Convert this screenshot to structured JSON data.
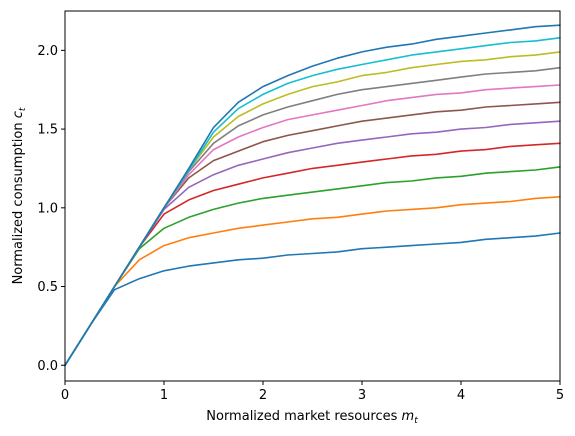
{
  "chart_data": {
    "type": "line",
    "xlabel_main": "Normalized market resources ",
    "xlabel_var": "m",
    "xlabel_sub": "t",
    "ylabel_main": "Normalized consumption ",
    "ylabel_var": "c",
    "ylabel_sub": "t",
    "xlim": [
      0,
      5
    ],
    "ylim": [
      -0.1,
      2.25
    ],
    "xticks": [
      0,
      1,
      2,
      3,
      4,
      5
    ],
    "xtick_labels": [
      "0",
      "1",
      "2",
      "3",
      "4",
      "5"
    ],
    "yticks": [
      0.0,
      0.5,
      1.0,
      1.5,
      2.0
    ],
    "ytick_labels": [
      "0.0",
      "0.5",
      "1.0",
      "1.5",
      "2.0"
    ],
    "grid": false,
    "x": [
      0,
      0.25,
      0.5,
      0.75,
      1.0,
      1.25,
      1.5,
      1.75,
      2.0,
      2.25,
      2.5,
      2.75,
      3.0,
      3.25,
      3.5,
      3.75,
      4.0,
      4.25,
      4.5,
      4.75,
      5.0
    ],
    "series": [
      {
        "color": "#1f77b4",
        "values": [
          0,
          0.25,
          0.48,
          0.55,
          0.6,
          0.63,
          0.65,
          0.67,
          0.68,
          0.7,
          0.71,
          0.72,
          0.74,
          0.75,
          0.76,
          0.77,
          0.78,
          0.8,
          0.81,
          0.82,
          0.84
        ]
      },
      {
        "color": "#ff7f0e",
        "values": [
          0,
          0.25,
          0.5,
          0.67,
          0.76,
          0.81,
          0.84,
          0.87,
          0.89,
          0.91,
          0.93,
          0.94,
          0.96,
          0.98,
          0.99,
          1.0,
          1.02,
          1.03,
          1.04,
          1.06,
          1.07
        ]
      },
      {
        "color": "#2ca02c",
        "values": [
          0,
          0.25,
          0.5,
          0.74,
          0.87,
          0.94,
          0.99,
          1.03,
          1.06,
          1.08,
          1.1,
          1.12,
          1.14,
          1.16,
          1.17,
          1.19,
          1.2,
          1.22,
          1.23,
          1.24,
          1.26
        ]
      },
      {
        "color": "#d62728",
        "values": [
          0,
          0.25,
          0.5,
          0.75,
          0.96,
          1.05,
          1.11,
          1.15,
          1.19,
          1.22,
          1.25,
          1.27,
          1.29,
          1.31,
          1.33,
          1.34,
          1.36,
          1.37,
          1.39,
          1.4,
          1.41
        ]
      },
      {
        "color": "#9467bd",
        "values": [
          0,
          0.25,
          0.5,
          0.75,
          0.99,
          1.13,
          1.21,
          1.27,
          1.31,
          1.35,
          1.38,
          1.41,
          1.43,
          1.45,
          1.47,
          1.48,
          1.5,
          1.51,
          1.53,
          1.54,
          1.55
        ]
      },
      {
        "color": "#8c564b",
        "values": [
          0,
          0.25,
          0.5,
          0.75,
          1.0,
          1.19,
          1.3,
          1.36,
          1.42,
          1.46,
          1.49,
          1.52,
          1.55,
          1.57,
          1.59,
          1.61,
          1.62,
          1.64,
          1.65,
          1.66,
          1.67
        ]
      },
      {
        "color": "#e377c2",
        "values": [
          0,
          0.25,
          0.5,
          0.75,
          1.0,
          1.21,
          1.37,
          1.45,
          1.51,
          1.56,
          1.59,
          1.62,
          1.65,
          1.68,
          1.7,
          1.72,
          1.73,
          1.75,
          1.76,
          1.77,
          1.78
        ]
      },
      {
        "color": "#7f7f7f",
        "values": [
          0,
          0.25,
          0.5,
          0.75,
          1.0,
          1.23,
          1.41,
          1.52,
          1.59,
          1.64,
          1.68,
          1.72,
          1.75,
          1.77,
          1.79,
          1.81,
          1.83,
          1.85,
          1.86,
          1.87,
          1.89
        ]
      },
      {
        "color": "#bcbd22",
        "values": [
          0,
          0.25,
          0.5,
          0.75,
          1.0,
          1.24,
          1.45,
          1.58,
          1.66,
          1.72,
          1.77,
          1.8,
          1.84,
          1.86,
          1.89,
          1.91,
          1.93,
          1.94,
          1.96,
          1.97,
          1.99
        ]
      },
      {
        "color": "#17becf",
        "values": [
          0,
          0.25,
          0.5,
          0.75,
          1.0,
          1.24,
          1.48,
          1.63,
          1.72,
          1.79,
          1.84,
          1.88,
          1.91,
          1.94,
          1.97,
          1.99,
          2.01,
          2.03,
          2.05,
          2.06,
          2.08
        ]
      },
      {
        "color": "#1f77b4",
        "values": [
          0,
          0.25,
          0.5,
          0.75,
          1.0,
          1.25,
          1.51,
          1.67,
          1.77,
          1.84,
          1.9,
          1.95,
          1.99,
          2.02,
          2.04,
          2.07,
          2.09,
          2.11,
          2.13,
          2.15,
          2.16
        ]
      }
    ]
  }
}
